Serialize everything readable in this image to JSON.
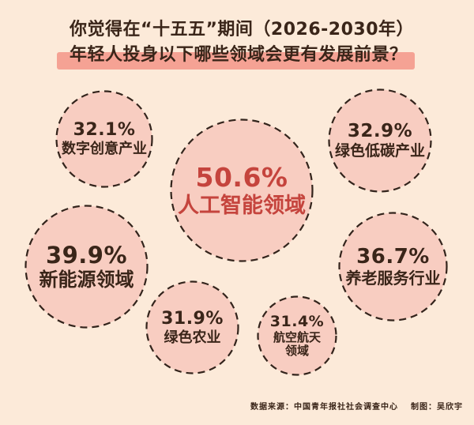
{
  "header": {
    "title_line1": "你觉得在“十五五”期间（2026-2030年）",
    "title_line2": "年轻人投身以下哪些领域会更有发展前景？"
  },
  "chart_data": {
    "type": "bubble",
    "title": "你觉得在“十五五”期间（2026-2030年）年轻人投身以下哪些领域会更有发展前景？",
    "unit": "%",
    "items": [
      {
        "label": "人工智能领域",
        "value": 50.6,
        "display": "50.6%",
        "emphasis": true
      },
      {
        "label": "新能源领域",
        "value": 39.9,
        "display": "39.9%",
        "emphasis": false
      },
      {
        "label": "养老服务行业",
        "value": 36.7,
        "display": "36.7%",
        "emphasis": false
      },
      {
        "label": "绿色低碳产业",
        "value": 32.9,
        "display": "32.9%",
        "emphasis": false
      },
      {
        "label": "数字创意产业",
        "value": 32.1,
        "display": "32.1%",
        "emphasis": false
      },
      {
        "label": "绿色农业",
        "value": 31.9,
        "display": "31.9%",
        "emphasis": false
      },
      {
        "label": "航空航天领域",
        "value": 31.4,
        "display": "31.4%",
        "emphasis": false
      }
    ],
    "legend": "none",
    "notes": "packed dashed-outline pink bubbles, size proportional to value; top value highlighted in red"
  },
  "footer": {
    "source": "数据来源：中国青年报社社会调查中心",
    "credit": "制图：吴欣宇"
  },
  "colors": {
    "background": "#fcead9",
    "bubble_fill": "#f8cdc1",
    "ring": "#33241c",
    "ink": "#3a2519",
    "accent": "#c5443d",
    "highlight_bar": "#f5a294"
  }
}
